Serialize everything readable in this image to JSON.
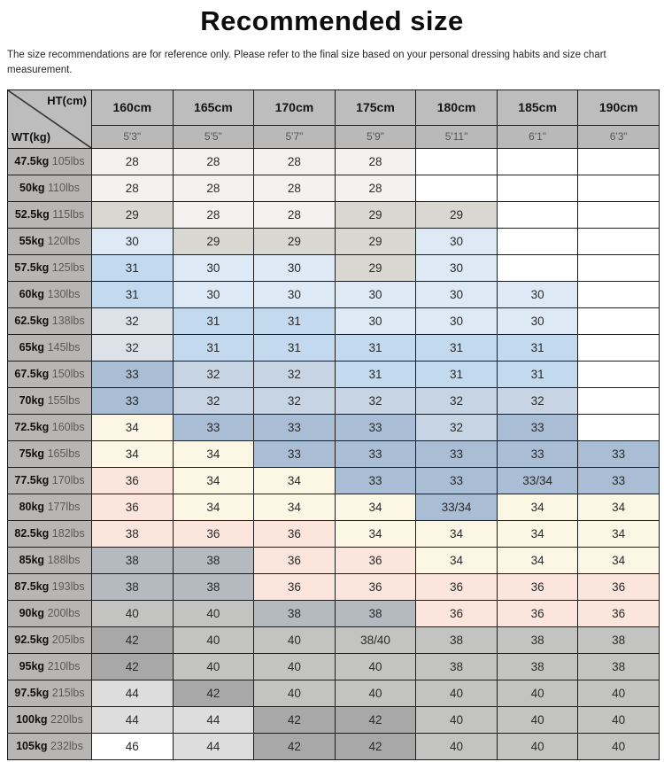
{
  "page": {
    "title": "Recommended size",
    "disclaimer": "The size recommendations are for reference only. Please refer to the final size based on your personal dressing habits and size chart measurement."
  },
  "table": {
    "corner_top_label": "HT(cm)",
    "corner_bottom_label": "WT(kg)"
  },
  "palette": {
    "W": "#ffffff",
    "OW": "#f3f2f0",
    "G29": "#d9d7d1",
    "B30": "#ddeaf6",
    "B31": "#c3d9ee",
    "G32": "#dde2e8",
    "B32": "#c6d4e4",
    "B33": "#a9bdd4",
    "C34": "#fbf7e4",
    "P36": "#fbe5dc",
    "GB38": "#b5bac1",
    "G40": "#c3c3c1",
    "G42": "#a8a8a8",
    "G44": "#dddddd"
  },
  "chart_data": {
    "type": "table",
    "title": "Recommended size",
    "columns_cm": [
      "160cm",
      "165cm",
      "170cm",
      "175cm",
      "180cm",
      "185cm",
      "190cm"
    ],
    "columns_ft": [
      "5'3\"",
      "5'5\"",
      "5'7\"",
      "5'9\"",
      "5'11\"",
      "6'1\"",
      "6'3\""
    ],
    "rows": [
      {
        "kg": "47.5kg",
        "lbs": "105lbs",
        "values": [
          "28",
          "28",
          "28",
          "28",
          "",
          "",
          ""
        ],
        "colors": [
          "OW",
          "OW",
          "OW",
          "OW",
          "W",
          "W",
          "W"
        ]
      },
      {
        "kg": "50kg",
        "lbs": "110lbs",
        "values": [
          "28",
          "28",
          "28",
          "28",
          "",
          "",
          ""
        ],
        "colors": [
          "OW",
          "OW",
          "OW",
          "OW",
          "W",
          "W",
          "W"
        ]
      },
      {
        "kg": "52.5kg",
        "lbs": "115lbs",
        "values": [
          "29",
          "28",
          "28",
          "29",
          "29",
          "",
          ""
        ],
        "colors": [
          "G29",
          "OW",
          "OW",
          "G29",
          "G29",
          "W",
          "W"
        ]
      },
      {
        "kg": "55kg",
        "lbs": "120lbs",
        "values": [
          "30",
          "29",
          "29",
          "29",
          "30",
          "",
          ""
        ],
        "colors": [
          "B30",
          "G29",
          "G29",
          "G29",
          "B30",
          "W",
          "W"
        ]
      },
      {
        "kg": "57.5kg",
        "lbs": "125lbs",
        "values": [
          "31",
          "30",
          "30",
          "29",
          "30",
          "",
          ""
        ],
        "colors": [
          "B31",
          "B30",
          "B30",
          "G29",
          "B30",
          "W",
          "W"
        ]
      },
      {
        "kg": "60kg",
        "lbs": "130lbs",
        "values": [
          "31",
          "30",
          "30",
          "30",
          "30",
          "30",
          ""
        ],
        "colors": [
          "B31",
          "B30",
          "B30",
          "B30",
          "B30",
          "B30",
          "W"
        ]
      },
      {
        "kg": "62.5kg",
        "lbs": "138lbs",
        "values": [
          "32",
          "31",
          "31",
          "30",
          "30",
          "30",
          ""
        ],
        "colors": [
          "G32",
          "B31",
          "B31",
          "B30",
          "B30",
          "B30",
          "W"
        ]
      },
      {
        "kg": "65kg",
        "lbs": "145lbs",
        "values": [
          "32",
          "31",
          "31",
          "31",
          "31",
          "31",
          ""
        ],
        "colors": [
          "G32",
          "B31",
          "B31",
          "B31",
          "B31",
          "B31",
          "W"
        ]
      },
      {
        "kg": "67.5kg",
        "lbs": "150lbs",
        "values": [
          "33",
          "32",
          "32",
          "31",
          "31",
          "31",
          ""
        ],
        "colors": [
          "B33",
          "B32",
          "B32",
          "B31",
          "B31",
          "B31",
          "W"
        ]
      },
      {
        "kg": "70kg",
        "lbs": "155lbs",
        "values": [
          "33",
          "32",
          "32",
          "32",
          "32",
          "32",
          ""
        ],
        "colors": [
          "B33",
          "B32",
          "B32",
          "B32",
          "B32",
          "B32",
          "W"
        ]
      },
      {
        "kg": "72.5kg",
        "lbs": "160lbs",
        "values": [
          "34",
          "33",
          "33",
          "33",
          "32",
          "33",
          ""
        ],
        "colors": [
          "C34",
          "B33",
          "B33",
          "B33",
          "B32",
          "B33",
          "W"
        ]
      },
      {
        "kg": "75kg",
        "lbs": "165lbs",
        "values": [
          "34",
          "34",
          "33",
          "33",
          "33",
          "33",
          "33"
        ],
        "colors": [
          "C34",
          "C34",
          "B33",
          "B33",
          "B33",
          "B33",
          "B33"
        ]
      },
      {
        "kg": "77.5kg",
        "lbs": "170lbs",
        "values": [
          "36",
          "34",
          "34",
          "33",
          "33",
          "33/34",
          "33"
        ],
        "colors": [
          "P36",
          "C34",
          "C34",
          "B33",
          "B33",
          "B33",
          "B33"
        ]
      },
      {
        "kg": "80kg",
        "lbs": "177lbs",
        "values": [
          "36",
          "34",
          "34",
          "34",
          "33/34",
          "34",
          "34"
        ],
        "colors": [
          "P36",
          "C34",
          "C34",
          "C34",
          "B33",
          "C34",
          "C34"
        ]
      },
      {
        "kg": "82.5kg",
        "lbs": "182lbs",
        "values": [
          "38",
          "36",
          "36",
          "34",
          "34",
          "34",
          "34"
        ],
        "colors": [
          "P36",
          "P36",
          "P36",
          "C34",
          "C34",
          "C34",
          "C34"
        ]
      },
      {
        "kg": "85kg",
        "lbs": "188lbs",
        "values": [
          "38",
          "38",
          "36",
          "36",
          "34",
          "34",
          "34"
        ],
        "colors": [
          "GB38",
          "GB38",
          "P36",
          "P36",
          "C34",
          "C34",
          "C34"
        ]
      },
      {
        "kg": "87.5kg",
        "lbs": "193lbs",
        "values": [
          "38",
          "38",
          "36",
          "36",
          "36",
          "36",
          "36"
        ],
        "colors": [
          "GB38",
          "GB38",
          "P36",
          "P36",
          "P36",
          "P36",
          "P36"
        ]
      },
      {
        "kg": "90kg",
        "lbs": "200lbs",
        "values": [
          "40",
          "40",
          "38",
          "38",
          "36",
          "36",
          "36"
        ],
        "colors": [
          "G40",
          "G40",
          "GB38",
          "GB38",
          "P36",
          "P36",
          "P36"
        ]
      },
      {
        "kg": "92.5kg",
        "lbs": "205lbs",
        "values": [
          "42",
          "40",
          "40",
          "38/40",
          "38",
          "38",
          "38"
        ],
        "colors": [
          "G42",
          "G40",
          "G40",
          "G40",
          "G40",
          "G40",
          "G40"
        ]
      },
      {
        "kg": "95kg",
        "lbs": "210lbs",
        "values": [
          "42",
          "40",
          "40",
          "40",
          "38",
          "38",
          "38"
        ],
        "colors": [
          "G42",
          "G40",
          "G40",
          "G40",
          "G40",
          "G40",
          "G40"
        ]
      },
      {
        "kg": "97.5kg",
        "lbs": "215lbs",
        "values": [
          "44",
          "42",
          "40",
          "40",
          "40",
          "40",
          "40"
        ],
        "colors": [
          "G44",
          "G42",
          "G40",
          "G40",
          "G40",
          "G40",
          "G40"
        ]
      },
      {
        "kg": "100kg",
        "lbs": "220lbs",
        "values": [
          "44",
          "44",
          "42",
          "42",
          "40",
          "40",
          "40"
        ],
        "colors": [
          "G44",
          "G44",
          "G42",
          "G42",
          "G40",
          "G40",
          "G40"
        ]
      },
      {
        "kg": "105kg",
        "lbs": "232lbs",
        "values": [
          "46",
          "44",
          "42",
          "42",
          "40",
          "40",
          "40"
        ],
        "colors": [
          "W",
          "G44",
          "G42",
          "G42",
          "G40",
          "G40",
          "G40"
        ]
      }
    ]
  }
}
